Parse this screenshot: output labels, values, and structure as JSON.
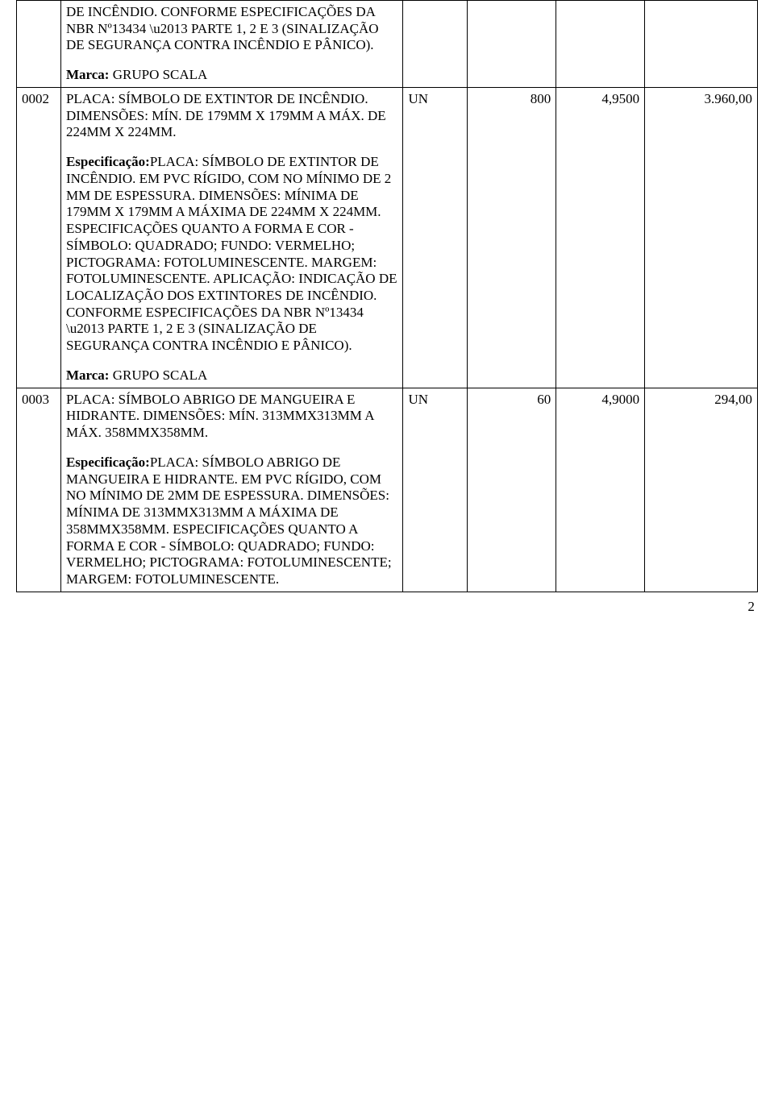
{
  "rows": [
    {
      "code": "",
      "desc_top": "DE INCÊNDIO. CONFORME ESPECIFICAÇÕES DA NBR Nº13434 \\u2013 PARTE 1, 2 E 3 (SINALIZAÇÃO DE SEGURANÇA CONTRA INCÊNDIO E PÂNICO).",
      "marca_label": "Marca: ",
      "marca_value": "GRUPO SCALA",
      "un": "",
      "qty": "",
      "price": "",
      "total": ""
    },
    {
      "code": "0002",
      "title": "PLACA: SÍMBOLO DE EXTINTOR DE INCÊNDIO. DIMENSÕES: MÍN. DE 179MM X 179MM A MÁX. DE 224MM X 224MM.",
      "spec_label": "Especificação:",
      "spec_body": "PLACA: SÍMBOLO DE EXTINTOR DE INCÊNDIO. EM PVC RÍGIDO, COM NO MÍNIMO DE 2 MM DE ESPESSURA. DIMENSÕES: MÍNIMA DE 179MM X 179MM A MÁXIMA DE 224MM X 224MM. ESPECIFICAÇÕES QUANTO A FORMA E COR - SÍMBOLO: QUADRADO; FUNDO: VERMELHO; PICTOGRAMA: FOTOLUMINESCENTE. MARGEM: FOTOLUMINESCENTE. APLICAÇÃO: INDICAÇÃO DE LOCALIZAÇÃO DOS EXTINTORES DE INCÊNDIO. CONFORME ESPECIFICAÇÕES DA NBR Nº13434 \\u2013 PARTE 1, 2 E 3 (SINALIZAÇÃO DE SEGURANÇA CONTRA INCÊNDIO E PÂNICO).",
      "marca_label": "Marca: ",
      "marca_value": "GRUPO SCALA",
      "un": "UN",
      "qty": "800",
      "price": "4,9500",
      "total": "3.960,00"
    },
    {
      "code": "0003",
      "title": "PLACA: SÍMBOLO ABRIGO DE MANGUEIRA E HIDRANTE. DIMENSÕES: MÍN. 313MMX313MM A MÁX. 358MMX358MM.",
      "spec_label": "Especificação:",
      "spec_body": "PLACA: SÍMBOLO ABRIGO DE MANGUEIRA E HIDRANTE. EM PVC RÍGIDO, COM NO MÍNIMO DE 2MM DE ESPESSURA. DIMENSÕES: MÍNIMA DE 313MMX313MM A MÁXIMA DE 358MMX358MM. ESPECIFICAÇÕES QUANTO A FORMA E COR - SÍMBOLO: QUADRADO; FUNDO: VERMELHO; PICTOGRAMA: FOTOLUMINESCENTE; MARGEM: FOTOLUMINESCENTE.",
      "marca_label": "",
      "marca_value": "",
      "un": "UN",
      "qty": "60",
      "price": "4,9000",
      "total": "294,00"
    }
  ],
  "page_number": "2"
}
